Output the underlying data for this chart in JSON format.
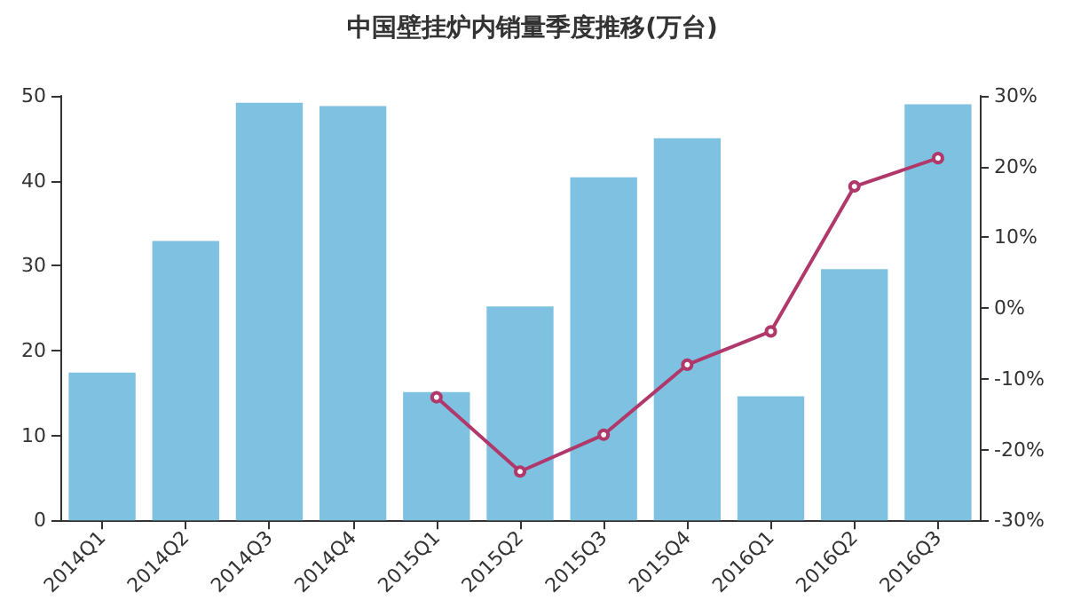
{
  "chart_data": {
    "type": "bar",
    "title": "中国壁挂炉内销量季度推移(万台)",
    "categories": [
      "2014Q1",
      "2014Q2",
      "2014Q3",
      "2014Q4",
      "2015Q1",
      "2015Q2",
      "2015Q3",
      "2015Q4",
      "2016Q1",
      "2016Q2",
      "2016Q3"
    ],
    "series": [
      {
        "color": "#7ec1e1",
        "values": [
          17.4,
          32.9,
          49.2,
          48.8,
          15.1,
          25.2,
          40.4,
          45.0,
          14.6,
          29.6,
          49.0
        ]
      },
      {
        "type": "line",
        "axis": "y2",
        "color": "#b0386a",
        "marker": "circle",
        "values": [
          null,
          null,
          null,
          null,
          -12.6,
          -23.1,
          -17.9,
          -8.0,
          -3.3,
          17.2,
          21.2
        ]
      }
    ],
    "ylim": [
      0,
      50
    ],
    "yticks": [
      0,
      10,
      20,
      30,
      40,
      50
    ],
    "y2lim": [
      -30,
      30
    ],
    "y2ticks": [
      {
        "value": -30,
        "label": "-30%"
      },
      {
        "value": -20,
        "label": "-20%"
      },
      {
        "value": -10,
        "label": "-10%"
      },
      {
        "value": 0,
        "label": "0%"
      },
      {
        "value": 10,
        "label": "10%"
      },
      {
        "value": 20,
        "label": "20%"
      },
      {
        "value": 30,
        "label": "30%"
      }
    ],
    "grid": false
  }
}
